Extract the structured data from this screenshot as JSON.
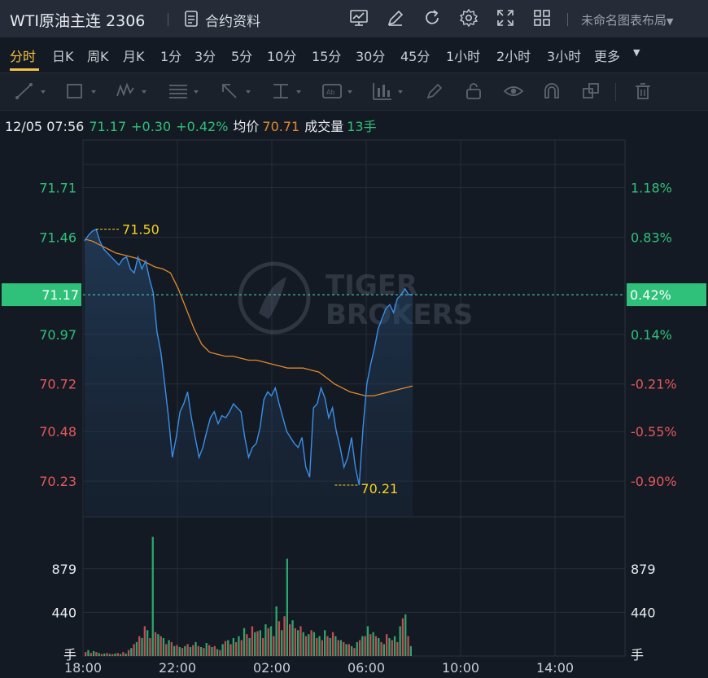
{
  "header": {
    "title": "WTI原油主连 2306",
    "contract_label": "合约资料",
    "layout_label": "未命名图表布局",
    "icons": [
      "chart-icon",
      "pen-icon",
      "refresh-icon",
      "settings-icon",
      "fullscreen-icon",
      "grid-icon"
    ]
  },
  "periods": [
    "分时",
    "日K",
    "周K",
    "月K",
    "1分",
    "3分",
    "5分",
    "10分",
    "15分",
    "30分",
    "45分",
    "1小时",
    "2小时",
    "3小时",
    "更多"
  ],
  "active_period": "分时",
  "info": {
    "datetime": "12/05 07:56",
    "price": "71.17",
    "change": "+0.30",
    "change_pct": "+0.42%",
    "avg_label": "均价",
    "avg_value": "70.71",
    "volume_label": "成交量",
    "volume_value": "13手"
  },
  "colors": {
    "up": "#2fc07a",
    "down": "#e4575a",
    "price_line": "#3a8fe8",
    "avg_line": "#e08a2d",
    "marker": "#f5d020",
    "current_badge": "#2fc07a"
  },
  "chart_data": {
    "type": "line",
    "x_ticks": [
      "18:00",
      "22:00",
      "02:00",
      "06:00",
      "10:00",
      "14:00"
    ],
    "y_ticks_left": [
      "71.71",
      "71.46",
      "70.97",
      "70.72",
      "70.48",
      "70.23"
    ],
    "y_ticks_right": [
      "1.18%",
      "0.83%",
      "0.14%",
      "-0.21%",
      "-0.55%",
      "-0.90%"
    ],
    "y_range": [
      70.05,
      71.95
    ],
    "current_price": "71.17",
    "current_pct": "0.42%",
    "max_marker": {
      "label": "71.50",
      "value": 71.5
    },
    "min_marker": {
      "label": "70.21",
      "value": 70.21
    },
    "price_series": {
      "name": "",
      "values": [
        71.44,
        71.47,
        71.49,
        71.5,
        71.44,
        71.4,
        71.38,
        71.36,
        71.34,
        71.32,
        71.35,
        71.36,
        71.3,
        71.28,
        71.36,
        71.3,
        71.34,
        71.25,
        71.18,
        70.98,
        70.88,
        70.72,
        70.55,
        70.35,
        70.45,
        70.58,
        70.62,
        70.68,
        70.55,
        70.45,
        70.35,
        70.4,
        70.48,
        70.55,
        70.58,
        70.52,
        70.56,
        70.55,
        70.58,
        70.62,
        70.6,
        70.58,
        70.45,
        70.35,
        70.4,
        70.42,
        70.5,
        70.64,
        70.68,
        70.66,
        70.7,
        70.62,
        70.55,
        70.48,
        70.45,
        70.42,
        70.4,
        70.45,
        70.3,
        70.25,
        70.6,
        70.62,
        70.7,
        70.65,
        70.55,
        70.6,
        70.48,
        70.4,
        70.3,
        70.35,
        70.45,
        70.3,
        70.21,
        70.5,
        70.72,
        70.82,
        70.9,
        71.0,
        71.05,
        71.1,
        71.12,
        71.08,
        71.15,
        71.17,
        71.2,
        71.17,
        71.17
      ]
    },
    "avg_series": {
      "name": "",
      "values": [
        71.45,
        71.44,
        71.42,
        71.4,
        71.38,
        71.37,
        71.36,
        71.35,
        71.33,
        71.31,
        71.3,
        71.28,
        71.2,
        71.1,
        71.0,
        70.92,
        70.88,
        70.87,
        70.86,
        70.86,
        70.85,
        70.84,
        70.84,
        70.83,
        70.82,
        70.81,
        70.8,
        70.8,
        70.8,
        70.79,
        70.78,
        70.75,
        70.72,
        70.7,
        70.68,
        70.67,
        70.66,
        70.66,
        70.67,
        70.68,
        70.69,
        70.7,
        70.71
      ]
    },
    "volume": {
      "y_ticks": [
        "879",
        "440"
      ],
      "unit": "手",
      "y_range": [
        0,
        1320
      ],
      "values": [
        40,
        60,
        30,
        50,
        40,
        30,
        20,
        25,
        30,
        20,
        20,
        25,
        30,
        20,
        40,
        25,
        60,
        80,
        120,
        140,
        200,
        180,
        300,
        260,
        180,
        1200,
        240,
        220,
        200,
        180,
        120,
        160,
        140,
        100,
        110,
        90,
        80,
        100,
        120,
        90,
        110,
        140,
        100,
        90,
        80,
        130,
        110,
        90,
        100,
        70,
        60,
        120,
        150,
        160,
        120,
        180,
        140,
        200,
        160,
        280,
        220,
        180,
        300,
        240,
        250,
        260,
        180,
        320,
        280,
        300,
        200,
        500,
        350,
        260,
        400,
        980,
        320,
        360,
        280,
        260,
        300,
        240,
        200,
        220,
        260,
        240,
        180,
        200,
        160,
        260,
        200,
        180,
        240,
        200,
        160,
        160,
        140,
        120,
        120,
        100,
        80,
        140,
        160,
        200,
        200,
        300,
        220,
        240,
        200,
        180,
        140,
        120,
        220,
        180,
        160,
        200,
        140,
        300,
        380,
        420,
        200,
        100
      ],
      "colors": "alternating up/down"
    }
  }
}
